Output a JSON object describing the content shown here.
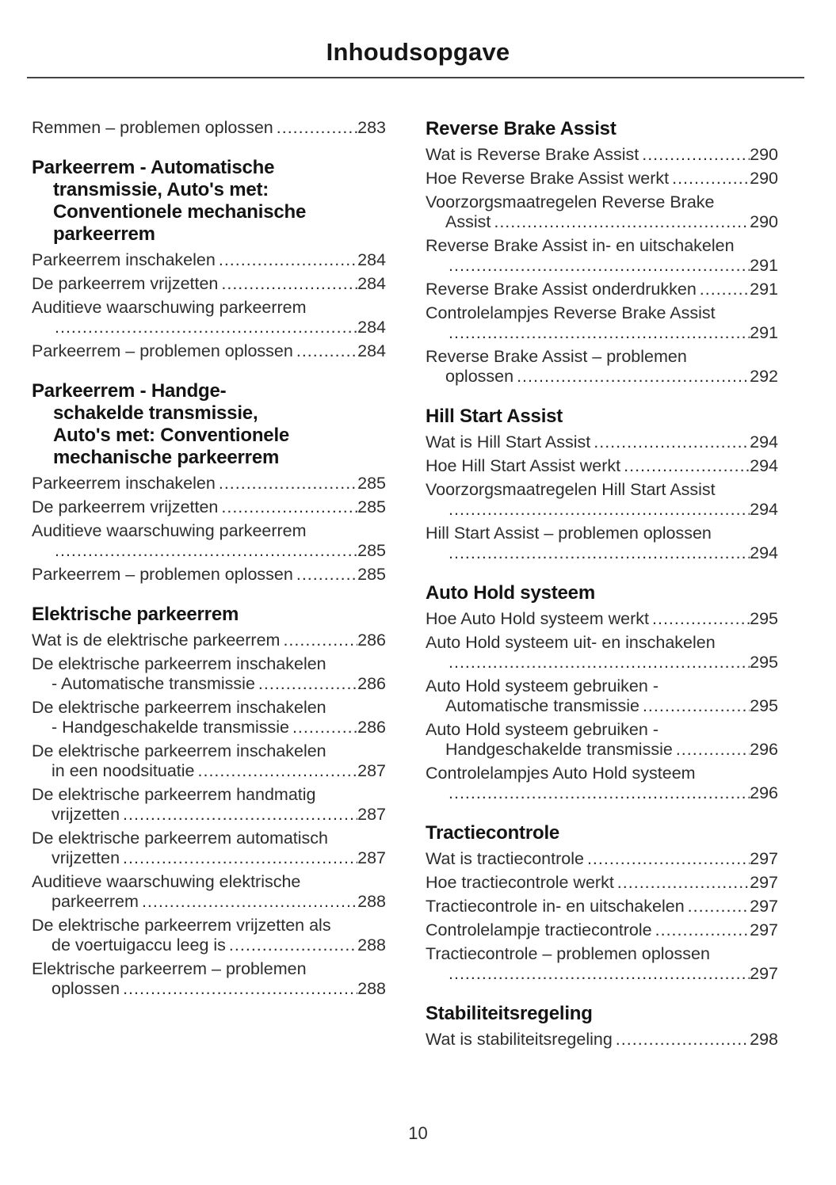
{
  "title": "Inhoudsopgave",
  "footer": {
    "page_number": "10"
  },
  "columns": [
    {
      "blocks": [
        {
          "heading": null,
          "entries": [
            {
              "lines": [
                "Remmen – problemen oplossen"
              ],
              "page": "283"
            }
          ]
        },
        {
          "heading": [
            "Parkeerrem - Automatische",
            "transmissie, Auto's met:",
            "Conventionele mechanische",
            "parkeerrem"
          ],
          "entries": [
            {
              "lines": [
                "Parkeerrem inschakelen"
              ],
              "page": "284"
            },
            {
              "lines": [
                "De parkeerrem vrijzetten"
              ],
              "page": "284"
            },
            {
              "lines": [
                "Auditieve waarschuwing parkeerrem",
                ""
              ],
              "page": "284"
            },
            {
              "lines": [
                "Parkeerrem – problemen oplossen"
              ],
              "page": "284"
            }
          ]
        },
        {
          "heading": [
            "Parkeerrem - Handge-",
            "schakelde transmissie,",
            "Auto's met: Conventionele",
            "mechanische parkeerrem"
          ],
          "entries": [
            {
              "lines": [
                "Parkeerrem inschakelen"
              ],
              "page": "285"
            },
            {
              "lines": [
                "De parkeerrem vrijzetten"
              ],
              "page": "285"
            },
            {
              "lines": [
                "Auditieve waarschuwing parkeerrem",
                ""
              ],
              "page": "285"
            },
            {
              "lines": [
                "Parkeerrem – problemen oplossen"
              ],
              "page": "285"
            }
          ]
        },
        {
          "heading": [
            "Elektrische parkeerrem"
          ],
          "entries": [
            {
              "lines": [
                "Wat is de elektrische parkeerrem"
              ],
              "page": "286"
            },
            {
              "lines": [
                "De elektrische parkeerrem inschakelen",
                "- Automatische transmissie"
              ],
              "page": "286"
            },
            {
              "lines": [
                "De elektrische parkeerrem inschakelen",
                "- Handgeschakelde transmissie"
              ],
              "page": "286"
            },
            {
              "lines": [
                "De elektrische parkeerrem inschakelen",
                "in een noodsituatie"
              ],
              "page": "287"
            },
            {
              "lines": [
                "De elektrische parkeerrem handmatig",
                "vrijzetten"
              ],
              "page": "287"
            },
            {
              "lines": [
                "De elektrische parkeerrem automatisch",
                "vrijzetten"
              ],
              "page": "287"
            },
            {
              "lines": [
                "Auditieve waarschuwing elektrische",
                "parkeerrem"
              ],
              "page": "288"
            },
            {
              "lines": [
                "De elektrische parkeerrem vrijzetten als",
                "de voertuigaccu leeg is"
              ],
              "page": "288"
            },
            {
              "lines": [
                "Elektrische parkeerrem – problemen",
                "oplossen"
              ],
              "page": "288"
            }
          ]
        }
      ]
    },
    {
      "blocks": [
        {
          "heading": [
            "Reverse Brake Assist"
          ],
          "entries": [
            {
              "lines": [
                "Wat is Reverse Brake Assist"
              ],
              "page": "290"
            },
            {
              "lines": [
                "Hoe Reverse Brake Assist werkt"
              ],
              "page": "290"
            },
            {
              "lines": [
                "Voorzorgsmaatregelen Reverse Brake",
                "Assist"
              ],
              "page": "290"
            },
            {
              "lines": [
                "Reverse Brake Assist in- en uitschakelen",
                ""
              ],
              "page": "291"
            },
            {
              "lines": [
                "Reverse Brake Assist onderdrukken"
              ],
              "page": "291"
            },
            {
              "lines": [
                "Controlelampjes Reverse Brake Assist",
                ""
              ],
              "page": "291"
            },
            {
              "lines": [
                "Reverse Brake Assist – problemen",
                "oplossen"
              ],
              "page": "292"
            }
          ]
        },
        {
          "heading": [
            "Hill Start Assist"
          ],
          "entries": [
            {
              "lines": [
                "Wat is Hill Start Assist"
              ],
              "page": "294"
            },
            {
              "lines": [
                "Hoe Hill Start Assist werkt"
              ],
              "page": "294"
            },
            {
              "lines": [
                "Voorzorgsmaatregelen Hill Start Assist",
                ""
              ],
              "page": "294"
            },
            {
              "lines": [
                "Hill Start Assist – problemen oplossen",
                ""
              ],
              "page": "294"
            }
          ]
        },
        {
          "heading": [
            "Auto Hold systeem"
          ],
          "entries": [
            {
              "lines": [
                "Hoe Auto Hold systeem werkt"
              ],
              "page": "295"
            },
            {
              "lines": [
                "Auto Hold systeem uit- en inschakelen",
                ""
              ],
              "page": "295"
            },
            {
              "lines": [
                "Auto Hold systeem gebruiken -",
                "Automatische transmissie"
              ],
              "page": "295"
            },
            {
              "lines": [
                "Auto Hold systeem gebruiken -",
                "Handgeschakelde transmissie"
              ],
              "page": "296"
            },
            {
              "lines": [
                "Controlelampjes Auto Hold systeem",
                ""
              ],
              "page": "296"
            }
          ]
        },
        {
          "heading": [
            "Tractiecontrole"
          ],
          "entries": [
            {
              "lines": [
                "Wat is tractiecontrole"
              ],
              "page": "297"
            },
            {
              "lines": [
                "Hoe tractiecontrole werkt"
              ],
              "page": "297"
            },
            {
              "lines": [
                "Tractiecontrole in- en uitschakelen"
              ],
              "page": "297"
            },
            {
              "lines": [
                "Controlelampje tractiecontrole"
              ],
              "page": "297"
            },
            {
              "lines": [
                "Tractiecontrole – problemen oplossen",
                ""
              ],
              "page": "297"
            }
          ]
        },
        {
          "heading": [
            "Stabiliteitsregeling"
          ],
          "entries": [
            {
              "lines": [
                "Wat is stabiliteitsregeling"
              ],
              "page": "298"
            }
          ]
        }
      ]
    }
  ]
}
